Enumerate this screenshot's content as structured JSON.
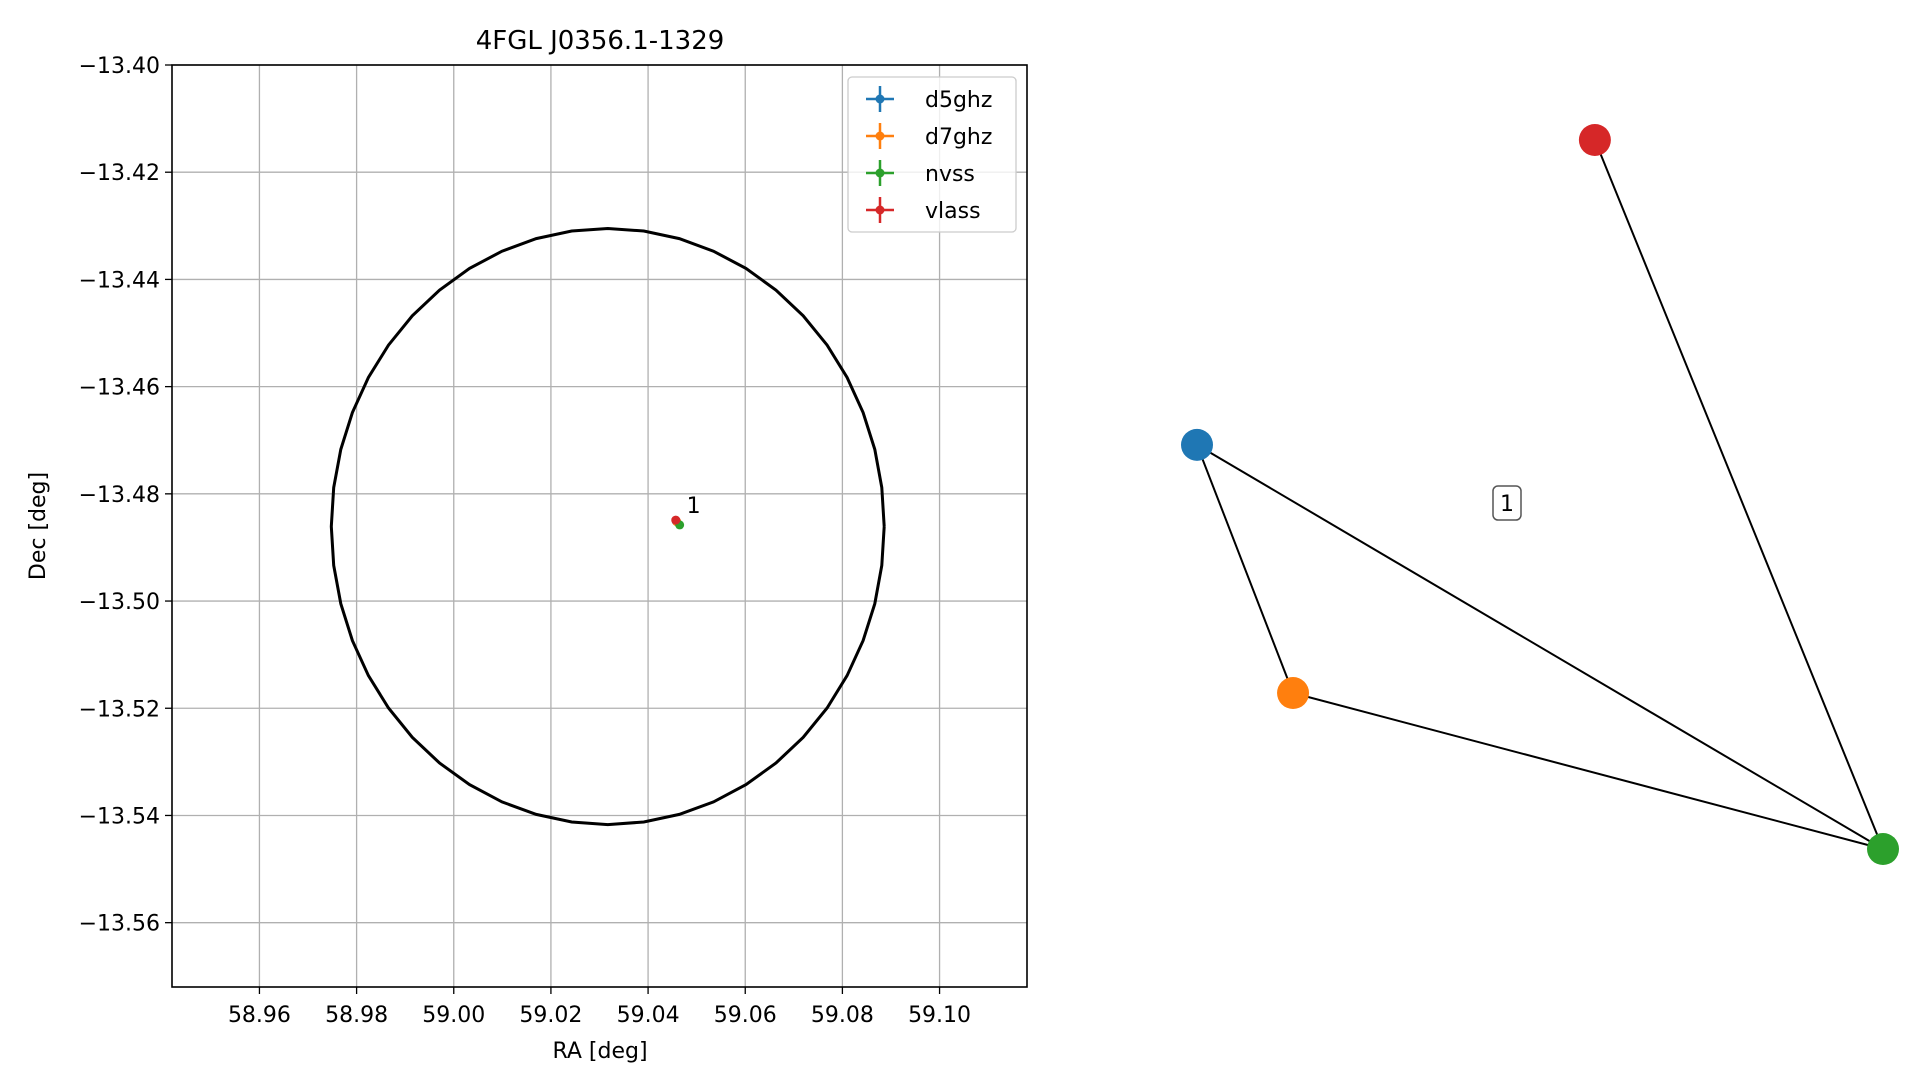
{
  "chart_data": [
    {
      "type": "scatter",
      "title": "4FGL J0356.1-1329",
      "xlabel": "RA [deg]",
      "ylabel": "Dec [deg]",
      "xlim": [
        58.942,
        59.118
      ],
      "ylim": [
        -13.572,
        -13.4
      ],
      "xticks": [
        58.96,
        58.98,
        59.0,
        59.02,
        59.04,
        59.06,
        59.08,
        59.1
      ],
      "xtick_labels": [
        "58.96",
        "58.98",
        "59.00",
        "59.02",
        "59.04",
        "59.06",
        "59.08",
        "59.10"
      ],
      "yticks": [
        -13.4,
        -13.42,
        -13.44,
        -13.46,
        -13.48,
        -13.5,
        -13.52,
        -13.54,
        -13.56
      ],
      "ytick_labels": [
        "−13.40",
        "−13.42",
        "−13.44",
        "−13.46",
        "−13.48",
        "−13.50",
        "−13.52",
        "−13.54",
        "−13.56"
      ],
      "grid": true,
      "legend_position": "top-right",
      "series": [
        {
          "name": "d5ghz",
          "color": "#1f77b4",
          "points": [
            {
              "x": 59.0458,
              "y": -13.4851
            }
          ]
        },
        {
          "name": "d7ghz",
          "color": "#ff7f0e",
          "points": [
            {
              "x": 59.0459,
              "y": -13.4852
            }
          ]
        },
        {
          "name": "nvss",
          "color": "#2ca02c",
          "points": [
            {
              "x": 59.0465,
              "y": -13.4858
            }
          ]
        },
        {
          "name": "vlass",
          "color": "#d62728",
          "points": [
            {
              "x": 59.0457,
              "y": -13.4849
            }
          ]
        }
      ],
      "ellipse": {
        "center_ra": 59.0317,
        "center_dec": -13.4861,
        "semi_axis_ra_deg": 0.0569,
        "semi_axis_dec_deg": 0.0556,
        "color": "#000000"
      },
      "annotations": [
        {
          "text": "1",
          "x": 59.0465,
          "y": -13.4851
        }
      ]
    },
    {
      "type": "graph",
      "group_label": "1",
      "nodes": [
        {
          "id": "d5ghz",
          "color": "#1f77b4",
          "x": 0.0,
          "y": 0.57
        },
        {
          "id": "d7ghz",
          "color": "#ff7f0e",
          "x": 0.14,
          "y": 0.22
        },
        {
          "id": "nvss",
          "color": "#2ca02c",
          "x": 1.0,
          "y": 0.0
        },
        {
          "id": "vlass",
          "color": "#d62728",
          "x": 0.58,
          "y": 1.0
        }
      ],
      "edges": [
        [
          "d5ghz",
          "d7ghz"
        ],
        [
          "d5ghz",
          "nvss"
        ],
        [
          "d7ghz",
          "nvss"
        ],
        [
          "vlass",
          "nvss"
        ]
      ]
    }
  ]
}
